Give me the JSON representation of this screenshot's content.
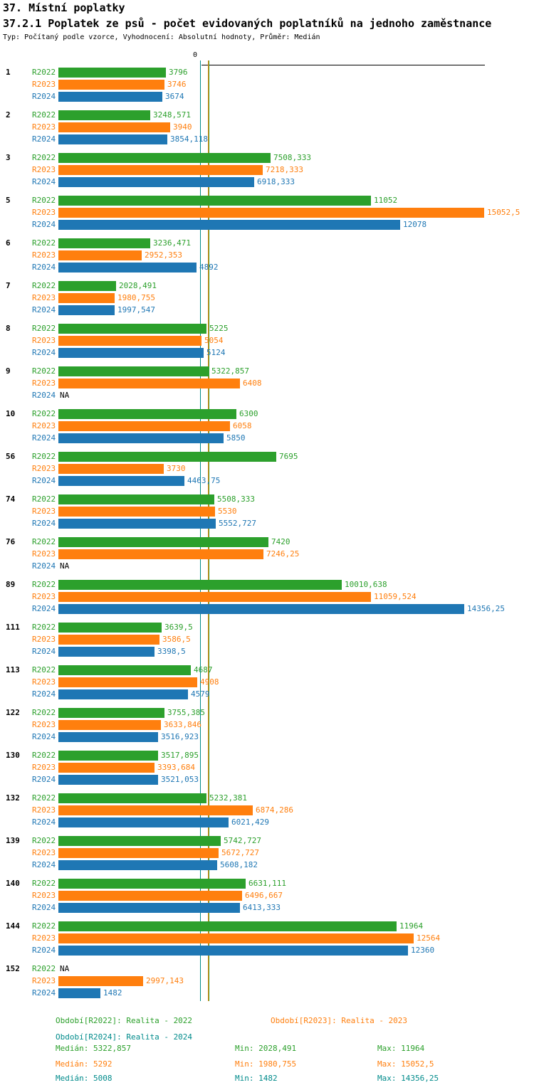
{
  "chart_data": {
    "type": "bar",
    "orientation": "horizontal",
    "title": "37. Místní poplatky",
    "subtitle": "37.2.1 Poplatek ze psů - počet evidovaných poplatníků na jednoho zaměstnance",
    "meta": "Typ: Počítaný podle vzorce, Vyhodnocení: Absolutní hodnoty, Průměr: Medián",
    "value_axis": {
      "zero_label": "0"
    },
    "series": [
      {
        "name": "R2022",
        "color": "#2ca02c"
      },
      {
        "name": "R2023",
        "color": "#ff7f0e"
      },
      {
        "name": "R2024",
        "color": "#1f77b4"
      }
    ],
    "na_text": "NA",
    "groups": [
      {
        "id": "1",
        "values": [
          3796,
          3746,
          3674
        ],
        "labels": [
          "3796",
          "3746",
          "3674"
        ]
      },
      {
        "id": "2",
        "values": [
          3248.571,
          3940,
          3854.118
        ],
        "labels": [
          "3248,571",
          "3940",
          "3854,118"
        ]
      },
      {
        "id": "3",
        "values": [
          7508.333,
          7218.333,
          6918.333
        ],
        "labels": [
          "7508,333",
          "7218,333",
          "6918,333"
        ]
      },
      {
        "id": "5",
        "values": [
          11052,
          15052.5,
          12078
        ],
        "labels": [
          "11052",
          "15052,5",
          "12078"
        ]
      },
      {
        "id": "6",
        "values": [
          3236.471,
          2952.353,
          4892
        ],
        "labels": [
          "3236,471",
          "2952,353",
          "4892"
        ]
      },
      {
        "id": "7",
        "values": [
          2028.491,
          1980.755,
          1997.547
        ],
        "labels": [
          "2028,491",
          "1980,755",
          "1997,547"
        ]
      },
      {
        "id": "8",
        "values": [
          5225,
          5054,
          5124
        ],
        "labels": [
          "5225",
          "5054",
          "5124"
        ]
      },
      {
        "id": "9",
        "values": [
          5322.857,
          6408,
          null
        ],
        "labels": [
          "5322,857",
          "6408",
          "NA"
        ]
      },
      {
        "id": "10",
        "values": [
          6300,
          6058,
          5850
        ],
        "labels": [
          "6300",
          "6058",
          "5850"
        ]
      },
      {
        "id": "56",
        "values": [
          7695,
          3730,
          4463.75
        ],
        "labels": [
          "7695",
          "3730",
          "4463,75"
        ]
      },
      {
        "id": "74",
        "values": [
          5508.333,
          5530,
          5552.727
        ],
        "labels": [
          "5508,333",
          "5530",
          "5552,727"
        ]
      },
      {
        "id": "76",
        "values": [
          7420,
          7246.25,
          null
        ],
        "labels": [
          "7420",
          "7246,25",
          "NA"
        ]
      },
      {
        "id": "89",
        "values": [
          10010.638,
          11059.524,
          14356.25
        ],
        "labels": [
          "10010,638",
          "11059,524",
          "14356,25"
        ]
      },
      {
        "id": "111",
        "values": [
          3639.5,
          3586.5,
          3398.5
        ],
        "labels": [
          "3639,5",
          "3586,5",
          "3398,5"
        ]
      },
      {
        "id": "113",
        "values": [
          4687,
          4908,
          4579
        ],
        "labels": [
          "4687",
          "4908",
          "4579"
        ]
      },
      {
        "id": "122",
        "values": [
          3755.385,
          3633.846,
          3516.923
        ],
        "labels": [
          "3755,385",
          "3633,846",
          "3516,923"
        ]
      },
      {
        "id": "130",
        "values": [
          3517.895,
          3393.684,
          3521.053
        ],
        "labels": [
          "3517,895",
          "3393,684",
          "3521,053"
        ]
      },
      {
        "id": "132",
        "values": [
          5232.381,
          6874.286,
          6021.429
        ],
        "labels": [
          "5232,381",
          "6874,286",
          "6021,429"
        ]
      },
      {
        "id": "139",
        "values": [
          5742.727,
          5672.727,
          5608.182
        ],
        "labels": [
          "5742,727",
          "5672,727",
          "5608,182"
        ]
      },
      {
        "id": "140",
        "values": [
          6631.111,
          6496.667,
          6413.333
        ],
        "labels": [
          "6631,111",
          "6496,667",
          "6413,333"
        ]
      },
      {
        "id": "144",
        "values": [
          11964,
          12564,
          12360
        ],
        "labels": [
          "11964",
          "12564",
          "12360"
        ]
      },
      {
        "id": "152",
        "values": [
          null,
          2997.143,
          1482
        ],
        "labels": [
          "NA",
          "2997,143",
          "1482"
        ]
      }
    ],
    "median_lines": [
      {
        "value": 5008,
        "color": "#008b8b"
      },
      {
        "value": 5292,
        "color": "#ff7f0e"
      },
      {
        "value": 5322.857,
        "color": "#2ca02c"
      }
    ],
    "legend": {
      "r2022": {
        "label": "Období[R2022]: Realita - 2022",
        "color": "#2ca02c"
      },
      "r2023": {
        "label": "Období[R2023]: Realita - 2023",
        "color": "#ff7f0e"
      },
      "r2024": {
        "label": "Období[R2024]: Realita - 2024",
        "color": "#008b8b"
      }
    },
    "stats": [
      {
        "median": "Medián: 5322,857",
        "min": "Min: 2028,491",
        "max": "Max: 11964",
        "color": "#2ca02c"
      },
      {
        "median": "Medián: 5292",
        "min": "Min: 1980,755",
        "max": "Max: 15052,5",
        "color": "#ff7f0e"
      },
      {
        "median": "Medián: 5008",
        "min": "Min: 1482",
        "max": "Max: 14356,25",
        "color": "#008b8b"
      }
    ]
  }
}
